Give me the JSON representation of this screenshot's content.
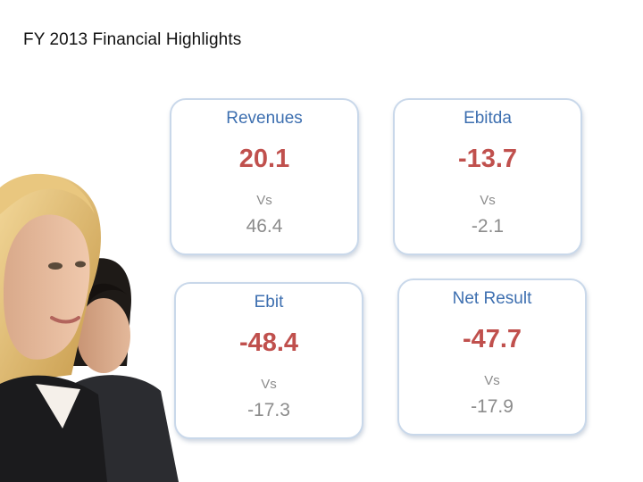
{
  "slide": {
    "title": "FY 2013 Financial Highlights"
  },
  "cards": [
    {
      "label": "Revenues",
      "value": "20.1",
      "vs": "Vs",
      "previous": "46.4"
    },
    {
      "label": "Ebitda",
      "value": "-13.7",
      "vs": "Vs",
      "previous": "-2.1"
    },
    {
      "label": "Ebit",
      "value": "-48.4",
      "vs": "Vs",
      "previous": "-17.3"
    },
    {
      "label": "Net Result",
      "value": "-47.7",
      "vs": "Vs",
      "previous": "-17.9"
    }
  ],
  "colors": {
    "label": "#3d6fb0",
    "value": "#c0504d",
    "muted": "#8c8c8c",
    "card_border": "#c9d8ea"
  }
}
